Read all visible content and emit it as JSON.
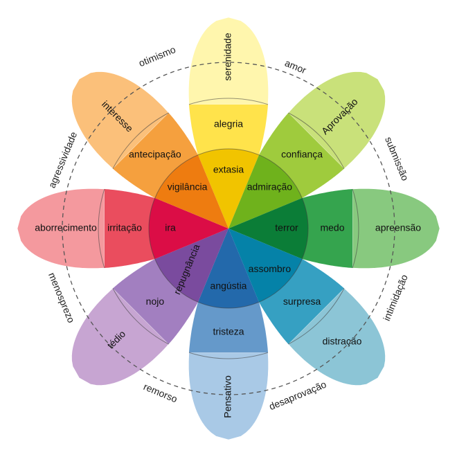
{
  "petals": [
    {
      "id": "joy",
      "outer": "serenidade",
      "middle": "alegria",
      "inner": "extasia",
      "colors": [
        "#fff6ad",
        "#ffe34b",
        "#f1c400"
      ]
    },
    {
      "id": "trust",
      "outer": "Aprovação",
      "middle": "confiança",
      "inner": "admiração",
      "colors": [
        "#c9e17a",
        "#9fcb3d",
        "#6fb21c"
      ]
    },
    {
      "id": "fear",
      "outer": "apreensão",
      "middle": "medo",
      "inner": "terror",
      "colors": [
        "#88c97f",
        "#35a44e",
        "#0b7d37"
      ]
    },
    {
      "id": "surprise",
      "outer": "distração",
      "middle": "surpresa",
      "inner": "assombro",
      "colors": [
        "#8cc5d6",
        "#36a0c2",
        "#0582a8"
      ]
    },
    {
      "id": "sadness",
      "outer": "Pensativo",
      "middle": "tristeza",
      "inner": "angústia",
      "colors": [
        "#a9c9e6",
        "#6599ca",
        "#2369ab"
      ]
    },
    {
      "id": "disgust",
      "outer": "tédio",
      "middle": "nojo",
      "inner": "repugnância",
      "colors": [
        "#c7a5d2",
        "#a27fc0",
        "#7a4b9e"
      ]
    },
    {
      "id": "anger",
      "outer": "aborrecimento",
      "middle": "irritação",
      "inner": "ira",
      "colors": [
        "#f4999e",
        "#ea4d5e",
        "#db0d46"
      ]
    },
    {
      "id": "anticipation",
      "outer": "interesse",
      "middle": "antecipação",
      "inner": "vigilância",
      "colors": [
        "#fbc07a",
        "#f5a03e",
        "#ee7c10"
      ]
    }
  ],
  "dyads": [
    "amor",
    "submissão",
    "intimidação",
    "desaprovação",
    "remorso",
    "menosprezo",
    "agressividade",
    "otimismo"
  ],
  "style": {
    "outline": "#ffffff",
    "ring": "#555555"
  }
}
